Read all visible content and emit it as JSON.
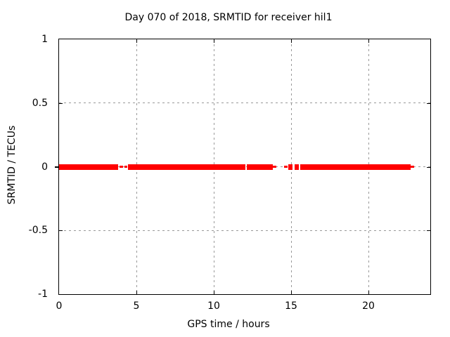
{
  "colors": {
    "series": "#ff0000",
    "grid": "#999999",
    "border": "#000000",
    "background": "#ffffff",
    "text": "#000000"
  },
  "chart_data": {
    "type": "line",
    "title": "Day 070 of 2018, SRMTID for receiver hil1",
    "xlabel": "GPS time / hours",
    "ylabel": "SRMTID / TECUs",
    "xlim": [
      0,
      24
    ],
    "ylim": [
      -1,
      1
    ],
    "xticks": [
      0,
      5,
      10,
      15,
      20
    ],
    "xtick_labels": [
      "0",
      "5",
      "10",
      "15",
      "20"
    ],
    "yticks": [
      1,
      0.5,
      0,
      -0.5,
      -1
    ],
    "ytick_labels": [
      "1",
      "0.5",
      "0",
      "-0.5",
      "-1"
    ],
    "grid": true,
    "legend": "none",
    "series": [
      {
        "name": "SRMTID",
        "color": "#ff0000",
        "y_value_tecus": 0,
        "segments": [
          {
            "start_h": 0.0,
            "end_h": 3.83,
            "style": "thick"
          },
          {
            "start_h": 3.92,
            "end_h": 4.12,
            "style": "thin"
          },
          {
            "start_h": 4.23,
            "end_h": 4.42,
            "style": "thin"
          },
          {
            "start_h": 4.46,
            "end_h": 12.05,
            "style": "thick"
          },
          {
            "start_h": 12.14,
            "end_h": 13.8,
            "style": "thick"
          },
          {
            "start_h": 13.84,
            "end_h": 14.05,
            "style": "thin"
          },
          {
            "start_h": 14.55,
            "end_h": 14.76,
            "style": "thin"
          },
          {
            "start_h": 14.8,
            "end_h": 15.1,
            "style": "thick"
          },
          {
            "start_h": 15.21,
            "end_h": 15.49,
            "style": "thick"
          },
          {
            "start_h": 15.6,
            "end_h": 22.72,
            "style": "thick"
          },
          {
            "start_h": 22.72,
            "end_h": 22.95,
            "style": "thin"
          }
        ]
      }
    ]
  }
}
